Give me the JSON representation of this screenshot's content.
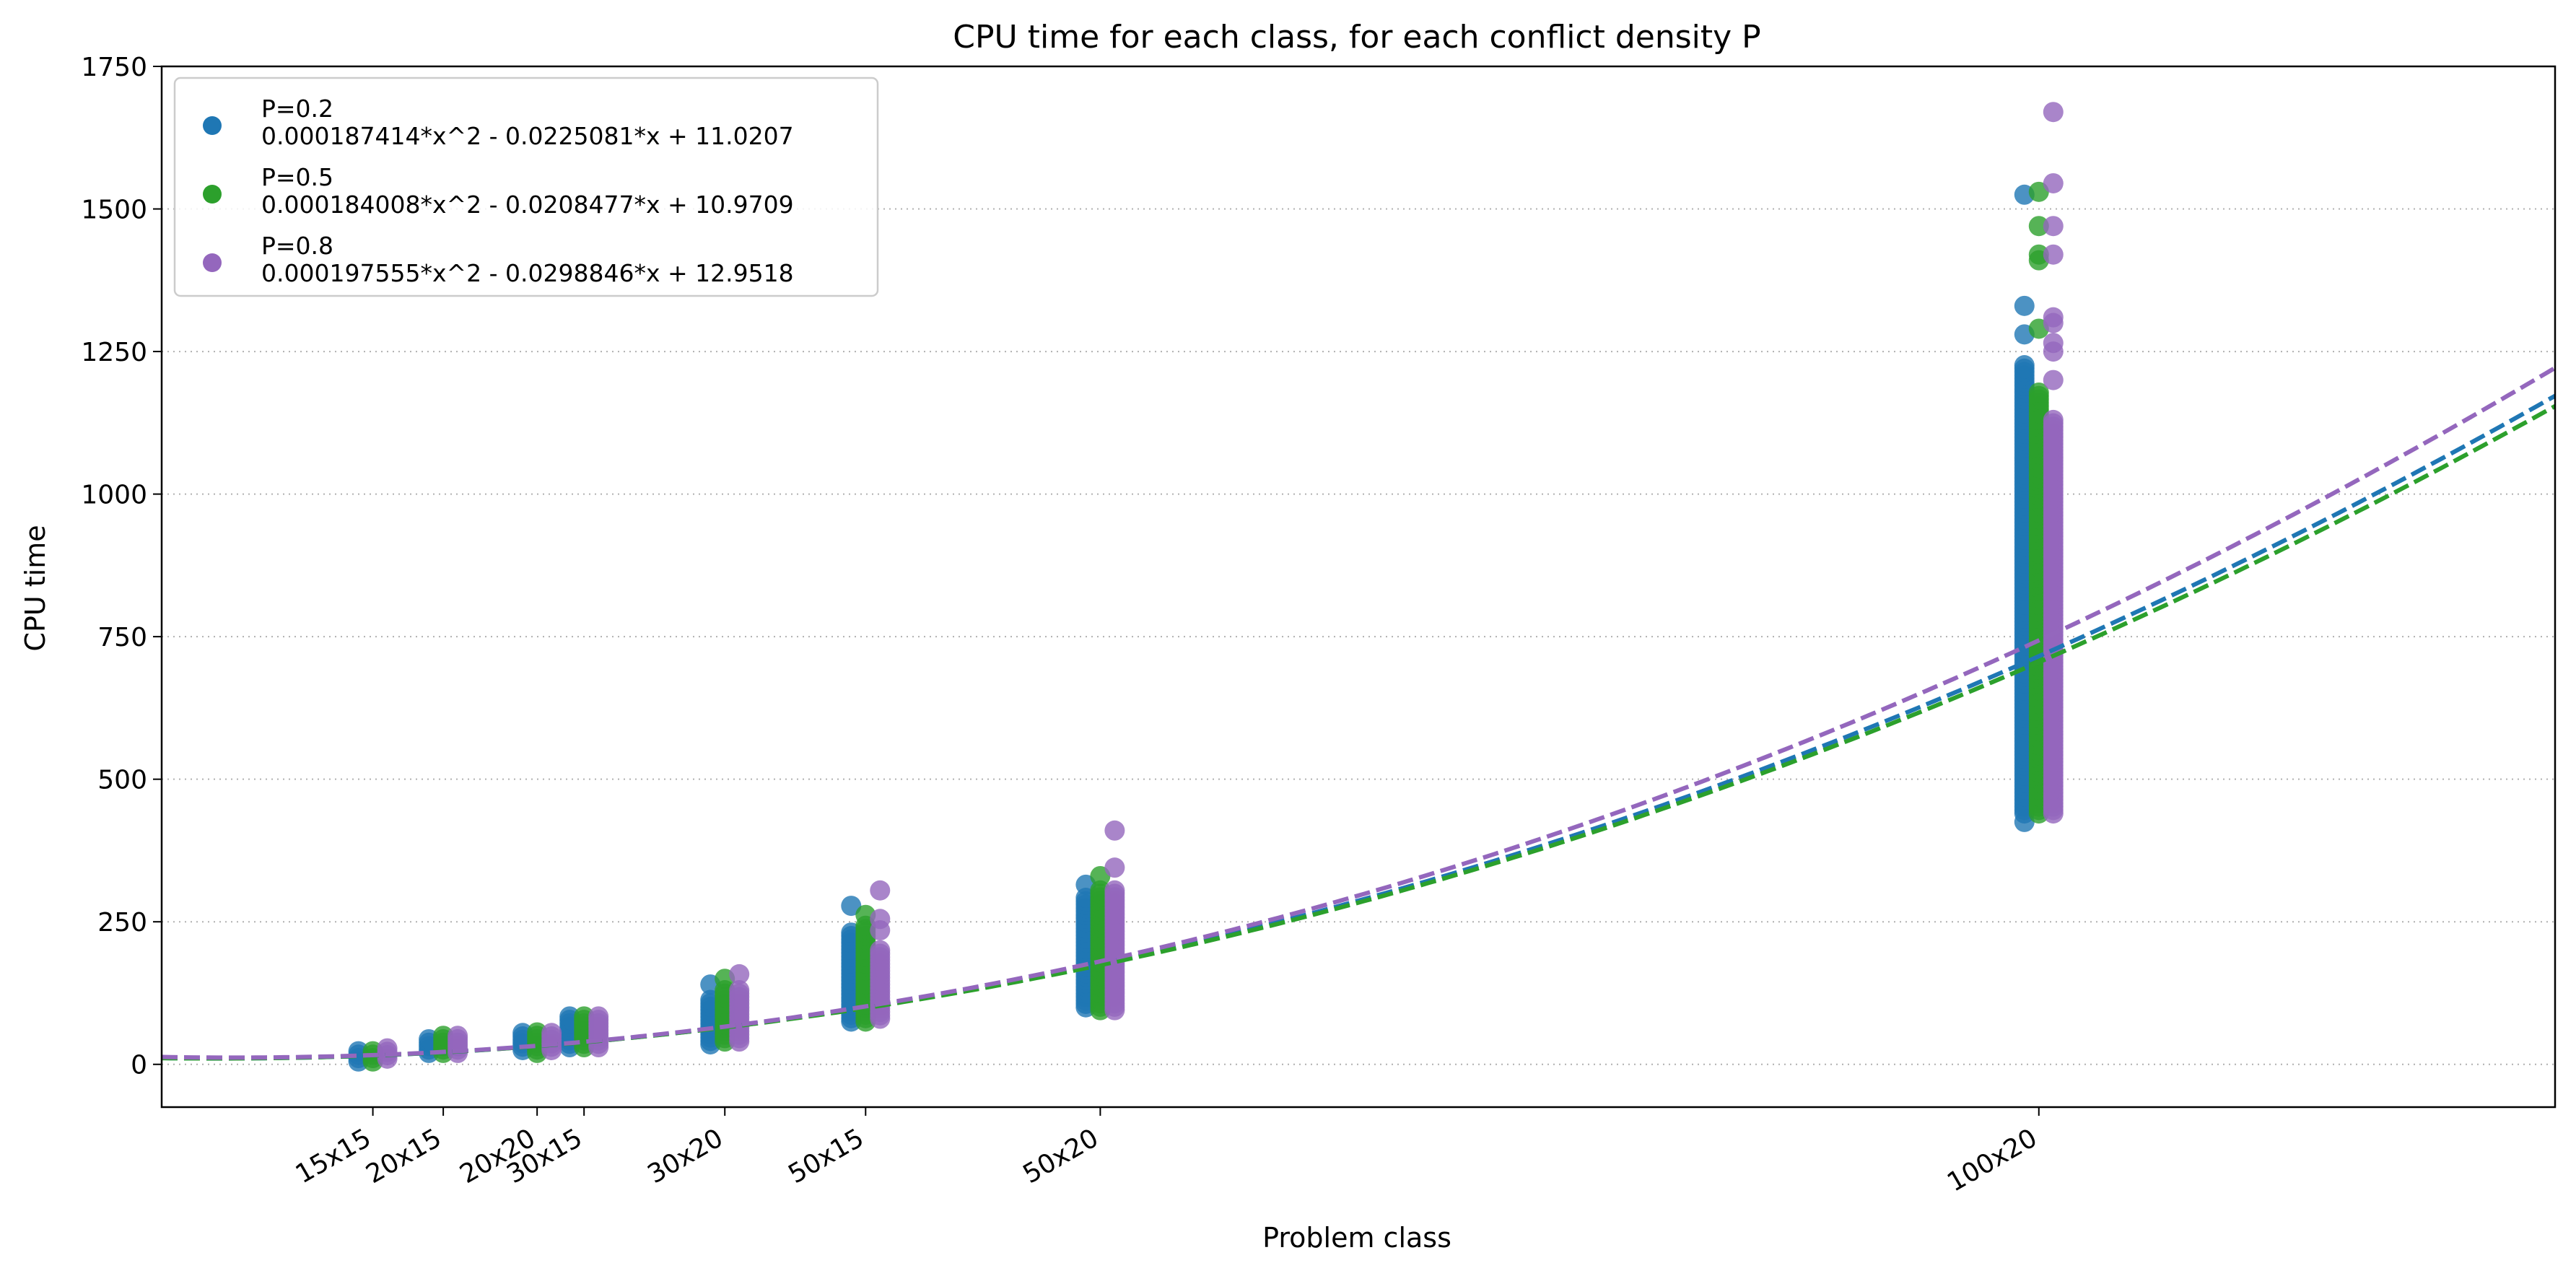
{
  "chart_data": {
    "type": "scatter",
    "title": "CPU time for each class, for each conflict density P",
    "xlabel": "Problem class",
    "ylabel": "CPU time",
    "xlim": [
      0,
      2550
    ],
    "ylim": [
      -75,
      1750
    ],
    "yticks": [
      0,
      250,
      500,
      750,
      1000,
      1250,
      1500,
      1750
    ],
    "grid": "y-dotted",
    "legend_placement": "top-left",
    "categories": [
      {
        "label": "15x15",
        "x": 225
      },
      {
        "label": "20x15",
        "x": 300
      },
      {
        "label": "20x20",
        "x": 400
      },
      {
        "label": "30x15",
        "x": 450
      },
      {
        "label": "30x20",
        "x": 600
      },
      {
        "label": "50x15",
        "x": 750
      },
      {
        "label": "50x20",
        "x": 1000
      },
      {
        "label": "100x20",
        "x": 2000
      }
    ],
    "series": [
      {
        "name": "P=0.2",
        "fit_label": "0.000187414*x^2 - 0.0225081*x + 11.0207",
        "color": "#1f77b4",
        "fit": {
          "a": 0.000187414,
          "b": -0.0225081,
          "c": 11.0207
        },
        "offset": -20,
        "points": [
          {
            "x": 225,
            "min": 5,
            "max": 25,
            "outliers": []
          },
          {
            "x": 300,
            "min": 20,
            "max": 45,
            "outliers": []
          },
          {
            "x": 400,
            "min": 25,
            "max": 60,
            "outliers": []
          },
          {
            "x": 450,
            "min": 30,
            "max": 85,
            "outliers": []
          },
          {
            "x": 600,
            "min": 35,
            "max": 115,
            "outliers": [
              140
            ]
          },
          {
            "x": 750,
            "min": 75,
            "max": 235,
            "outliers": [
              278
            ]
          },
          {
            "x": 1000,
            "min": 100,
            "max": 295,
            "outliers": [
              315
            ]
          },
          {
            "x": 2000,
            "min": 440,
            "max": 1230,
            "outliers": [
              425,
              1280,
              1330,
              1525
            ]
          }
        ]
      },
      {
        "name": "P=0.5",
        "fit_label": "0.000184008*x^2 - 0.0208477*x + 10.9709",
        "color": "#2ca02c",
        "fit": {
          "a": 0.000184008,
          "b": -0.0208477,
          "c": 10.9709
        },
        "offset": 0,
        "points": [
          {
            "x": 225,
            "min": 5,
            "max": 28,
            "outliers": []
          },
          {
            "x": 300,
            "min": 20,
            "max": 52,
            "outliers": []
          },
          {
            "x": 400,
            "min": 20,
            "max": 60,
            "outliers": []
          },
          {
            "x": 450,
            "min": 30,
            "max": 88,
            "outliers": []
          },
          {
            "x": 600,
            "min": 40,
            "max": 130,
            "outliers": [
              150
            ]
          },
          {
            "x": 750,
            "min": 75,
            "max": 245,
            "outliers": [
              262
            ]
          },
          {
            "x": 1000,
            "min": 95,
            "max": 310,
            "outliers": [
              330
            ]
          },
          {
            "x": 2000,
            "min": 440,
            "max": 1180,
            "outliers": [
              1290,
              1410,
              1420,
              1470,
              1530
            ]
          }
        ]
      },
      {
        "name": "P=0.8",
        "fit_label": "0.000197555*x^2 - 0.0298846*x + 12.9518",
        "color": "#9467bd",
        "fit": {
          "a": 0.000197555,
          "b": -0.0298846,
          "c": 12.9518
        },
        "offset": 20,
        "points": [
          {
            "x": 225,
            "min": 10,
            "max": 28,
            "outliers": []
          },
          {
            "x": 300,
            "min": 20,
            "max": 50,
            "outliers": []
          },
          {
            "x": 400,
            "min": 25,
            "max": 60,
            "outliers": []
          },
          {
            "x": 450,
            "min": 30,
            "max": 85,
            "outliers": []
          },
          {
            "x": 600,
            "min": 40,
            "max": 130,
            "outliers": [
              158
            ]
          },
          {
            "x": 750,
            "min": 80,
            "max": 200,
            "outliers": [
              235,
              255,
              305
            ]
          },
          {
            "x": 1000,
            "min": 95,
            "max": 310,
            "outliers": [
              345,
              410
            ]
          },
          {
            "x": 2000,
            "min": 440,
            "max": 1130,
            "outliers": [
              1200,
              1250,
              1265,
              1300,
              1310,
              1420,
              1470,
              1545,
              1670
            ]
          }
        ]
      }
    ]
  }
}
